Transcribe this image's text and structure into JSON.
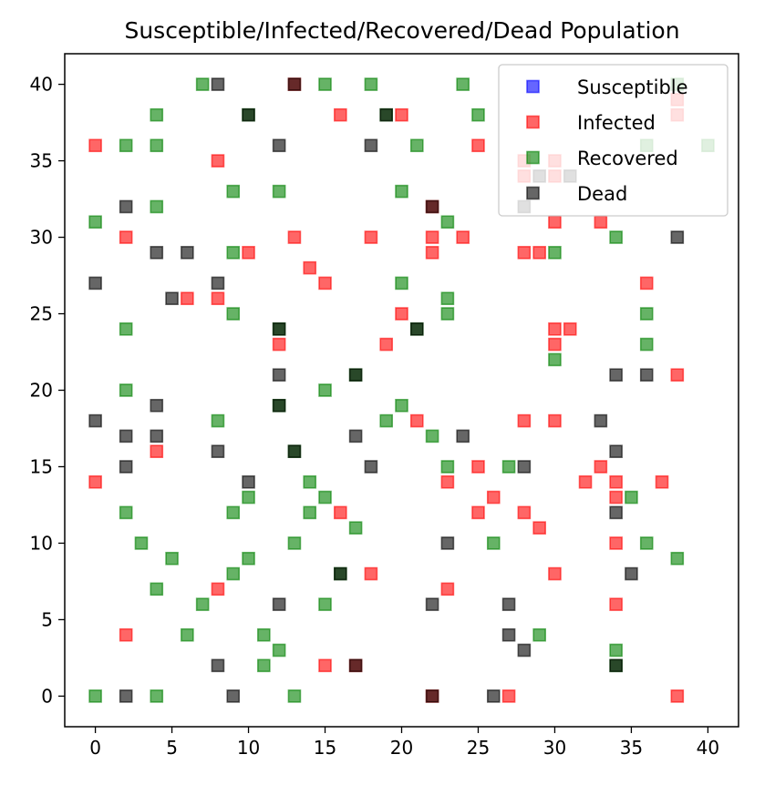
{
  "chart_data": {
    "type": "scatter",
    "title": "Susceptible/Infected/Recovered/Dead Population",
    "xlabel": "",
    "ylabel": "",
    "xlim": [
      -2,
      42
    ],
    "ylim": [
      -2,
      42
    ],
    "xticks": [
      "0",
      "5",
      "10",
      "15",
      "20",
      "25",
      "30",
      "35",
      "40"
    ],
    "yticks": [
      "0",
      "5",
      "10",
      "15",
      "20",
      "25",
      "30",
      "35",
      "40"
    ],
    "grid": false,
    "legend_position": "top-right",
    "marker": "square",
    "alpha": 0.6,
    "series": [
      {
        "name": "Susceptible",
        "color": "#0000ff",
        "points": []
      },
      {
        "name": "Infected",
        "color": "#ff0000",
        "points": [
          [
            0,
            36
          ],
          [
            8,
            35
          ],
          [
            16,
            38
          ],
          [
            20,
            38
          ],
          [
            25,
            36
          ],
          [
            22,
            32
          ],
          [
            30,
            31
          ],
          [
            33,
            31
          ],
          [
            2,
            30
          ],
          [
            10,
            29
          ],
          [
            13,
            30
          ],
          [
            18,
            30
          ],
          [
            22,
            30
          ],
          [
            22,
            29
          ],
          [
            24,
            30
          ],
          [
            28,
            29
          ],
          [
            29,
            29
          ],
          [
            14,
            28
          ],
          [
            15,
            27
          ],
          [
            6,
            26
          ],
          [
            8,
            26
          ],
          [
            36,
            27
          ],
          [
            12,
            23
          ],
          [
            19,
            23
          ],
          [
            20,
            25
          ],
          [
            30,
            24
          ],
          [
            30,
            23
          ],
          [
            31,
            24
          ],
          [
            38,
            21
          ],
          [
            21,
            18
          ],
          [
            28,
            18
          ],
          [
            30,
            18
          ],
          [
            4,
            16
          ],
          [
            0,
            14
          ],
          [
            23,
            14
          ],
          [
            25,
            15
          ],
          [
            32,
            14
          ],
          [
            33,
            15
          ],
          [
            34,
            14
          ],
          [
            34,
            13
          ],
          [
            37,
            14
          ],
          [
            16,
            12
          ],
          [
            26,
            13
          ],
          [
            25,
            12
          ],
          [
            28,
            12
          ],
          [
            29,
            11
          ],
          [
            34,
            10
          ],
          [
            18,
            8
          ],
          [
            30,
            8
          ],
          [
            8,
            7
          ],
          [
            23,
            7
          ],
          [
            34,
            6
          ],
          [
            2,
            4
          ],
          [
            15,
            2
          ],
          [
            22,
            0
          ],
          [
            27,
            0
          ],
          [
            38,
            0
          ],
          [
            28,
            35
          ],
          [
            28,
            34
          ],
          [
            30,
            35
          ],
          [
            30,
            34
          ],
          [
            38,
            39
          ],
          [
            38,
            38
          ],
          [
            17,
            2
          ],
          [
            13,
            40
          ]
        ]
      },
      {
        "name": "Recovered",
        "color": "#008000",
        "points": [
          [
            7,
            40
          ],
          [
            15,
            40
          ],
          [
            18,
            40
          ],
          [
            24,
            40
          ],
          [
            38,
            40
          ],
          [
            4,
            38
          ],
          [
            10,
            38
          ],
          [
            19,
            38
          ],
          [
            25,
            38
          ],
          [
            2,
            36
          ],
          [
            4,
            36
          ],
          [
            21,
            36
          ],
          [
            36,
            36
          ],
          [
            40,
            36
          ],
          [
            9,
            33
          ],
          [
            12,
            33
          ],
          [
            20,
            33
          ],
          [
            4,
            32
          ],
          [
            0,
            31
          ],
          [
            23,
            31
          ],
          [
            9,
            29
          ],
          [
            30,
            29
          ],
          [
            34,
            30
          ],
          [
            20,
            27
          ],
          [
            23,
            26
          ],
          [
            23,
            25
          ],
          [
            2,
            24
          ],
          [
            9,
            25
          ],
          [
            12,
            24
          ],
          [
            21,
            24
          ],
          [
            36,
            25
          ],
          [
            36,
            23
          ],
          [
            30,
            22
          ],
          [
            17,
            21
          ],
          [
            2,
            20
          ],
          [
            12,
            19
          ],
          [
            15,
            20
          ],
          [
            20,
            19
          ],
          [
            8,
            18
          ],
          [
            19,
            18
          ],
          [
            22,
            17
          ],
          [
            13,
            16
          ],
          [
            23,
            15
          ],
          [
            27,
            15
          ],
          [
            10,
            13
          ],
          [
            14,
            14
          ],
          [
            15,
            13
          ],
          [
            35,
            13
          ],
          [
            2,
            12
          ],
          [
            9,
            12
          ],
          [
            14,
            12
          ],
          [
            17,
            11
          ],
          [
            3,
            10
          ],
          [
            13,
            10
          ],
          [
            26,
            10
          ],
          [
            36,
            10
          ],
          [
            5,
            9
          ],
          [
            10,
            9
          ],
          [
            38,
            9
          ],
          [
            9,
            8
          ],
          [
            16,
            8
          ],
          [
            4,
            7
          ],
          [
            7,
            6
          ],
          [
            15,
            6
          ],
          [
            6,
            4
          ],
          [
            11,
            4
          ],
          [
            29,
            4
          ],
          [
            12,
            3
          ],
          [
            34,
            3
          ],
          [
            11,
            2
          ],
          [
            34,
            2
          ],
          [
            0,
            0
          ],
          [
            4,
            0
          ],
          [
            13,
            0
          ]
        ]
      },
      {
        "name": "Dead",
        "color": "#000000",
        "points": [
          [
            8,
            40
          ],
          [
            13,
            40
          ],
          [
            10,
            38
          ],
          [
            19,
            38
          ],
          [
            12,
            36
          ],
          [
            18,
            36
          ],
          [
            29,
            34
          ],
          [
            31,
            34
          ],
          [
            2,
            32
          ],
          [
            22,
            32
          ],
          [
            28,
            32
          ],
          [
            4,
            29
          ],
          [
            6,
            29
          ],
          [
            38,
            30
          ],
          [
            0,
            27
          ],
          [
            8,
            27
          ],
          [
            5,
            26
          ],
          [
            12,
            24
          ],
          [
            21,
            24
          ],
          [
            12,
            21
          ],
          [
            17,
            21
          ],
          [
            34,
            21
          ],
          [
            36,
            21
          ],
          [
            4,
            19
          ],
          [
            12,
            19
          ],
          [
            0,
            18
          ],
          [
            2,
            17
          ],
          [
            4,
            17
          ],
          [
            17,
            17
          ],
          [
            24,
            17
          ],
          [
            33,
            18
          ],
          [
            8,
            16
          ],
          [
            13,
            16
          ],
          [
            34,
            16
          ],
          [
            2,
            15
          ],
          [
            18,
            15
          ],
          [
            28,
            15
          ],
          [
            10,
            14
          ],
          [
            34,
            12
          ],
          [
            23,
            10
          ],
          [
            16,
            8
          ],
          [
            35,
            8
          ],
          [
            12,
            6
          ],
          [
            22,
            6
          ],
          [
            27,
            6
          ],
          [
            27,
            4
          ],
          [
            28,
            3
          ],
          [
            8,
            2
          ],
          [
            17,
            2
          ],
          [
            34,
            2
          ],
          [
            2,
            0
          ],
          [
            9,
            0
          ],
          [
            26,
            0
          ],
          [
            22,
            0
          ]
        ]
      }
    ]
  }
}
